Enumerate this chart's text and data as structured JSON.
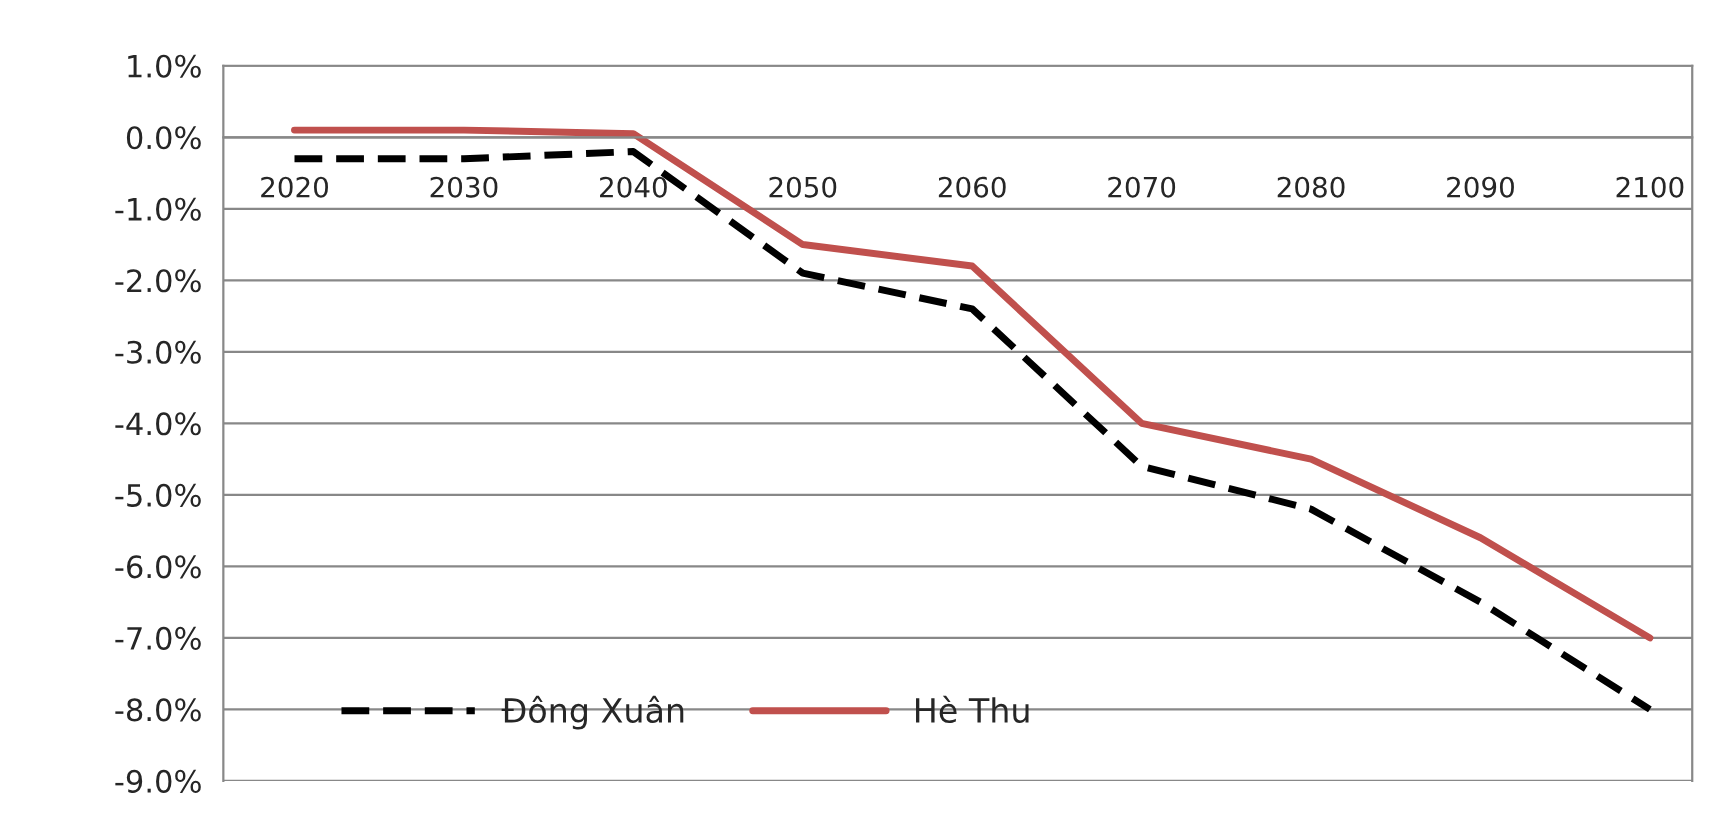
{
  "chart_data": {
    "type": "line",
    "categories": [
      "2020",
      "2030",
      "2040",
      "2050",
      "2060",
      "2070",
      "2080",
      "2090",
      "2100"
    ],
    "series": [
      {
        "name": "Đông Xuân",
        "color": "#000000",
        "line_style": "dashed",
        "values": [
          -0.3,
          -0.3,
          -0.2,
          -1.9,
          -2.4,
          -4.6,
          -5.2,
          -6.5,
          -8.0
        ]
      },
      {
        "name": "Hè Thu",
        "color": "#c0504d",
        "line_style": "solid",
        "values": [
          0.1,
          0.1,
          0.05,
          -1.5,
          -1.8,
          -4.0,
          -4.5,
          -5.6,
          -7.0
        ]
      }
    ],
    "ylim": [
      -9.0,
      1.0
    ],
    "yticks": [
      {
        "value": 1.0,
        "label": "1.0%"
      },
      {
        "value": 0.0,
        "label": "0.0%"
      },
      {
        "value": -1.0,
        "label": "-1.0%"
      },
      {
        "value": -2.0,
        "label": "-2.0%"
      },
      {
        "value": -3.0,
        "label": "-3.0%"
      },
      {
        "value": -4.0,
        "label": "-4.0%"
      },
      {
        "value": -5.0,
        "label": "-5.0%"
      },
      {
        "value": -6.0,
        "label": "-6.0%"
      },
      {
        "value": -7.0,
        "label": "-7.0%"
      },
      {
        "value": -8.0,
        "label": "-8.0%"
      },
      {
        "value": -9.0,
        "label": "-9.0%"
      }
    ],
    "grid": "y",
    "legend": "bottom left",
    "marker": "none"
  }
}
